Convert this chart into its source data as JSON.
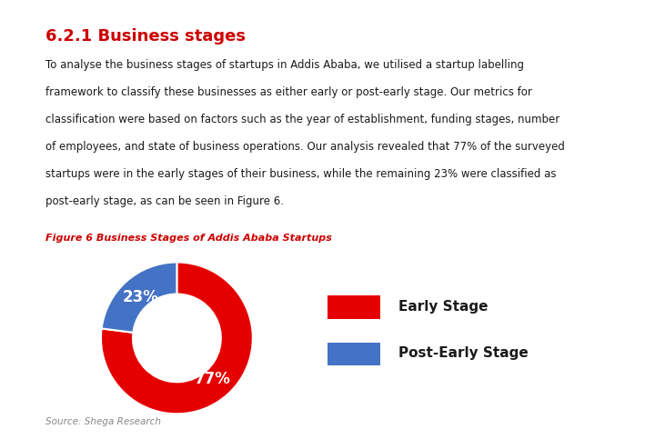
{
  "title": "6.2.1 Business stages",
  "title_color": "#cc0000",
  "body_text": "To analyse the business stages of startups in Addis Ababa, we utilised a startup labelling\nframework to classify these businesses as either early or post-early stage. Our metrics for\nclassification were based on factors such as the year of establishment, funding stages, number\nof employees, and state of business operations. Our analysis revealed that 77% of the surveyed\nstartups were in the early stages of their business, while the remaining 23% were classified as\npost-early stage, as can be seen in Figure 6.",
  "figure_caption": "Figure 6 Business Stages of Addis Ababa Startups",
  "figure_caption_color": "#cc0000",
  "source_text": "Source: Shega Research",
  "pie_values": [
    77,
    23
  ],
  "pie_colors": [
    "#e50000",
    "#4472c4"
  ],
  "pie_labels": [
    "77%",
    "23%"
  ],
  "legend_labels": [
    "Early Stage",
    "Post-Early Stage"
  ],
  "legend_colors": [
    "#e50000",
    "#4472c4"
  ],
  "background_color": "#ffffff",
  "text_color": "#1a1a1a",
  "donut_width": 0.42,
  "label_fontsize": 12,
  "legend_fontsize": 11,
  "body_fontsize": 8.5,
  "title_fontsize": 13,
  "caption_fontsize": 8.0,
  "source_fontsize": 7.5
}
